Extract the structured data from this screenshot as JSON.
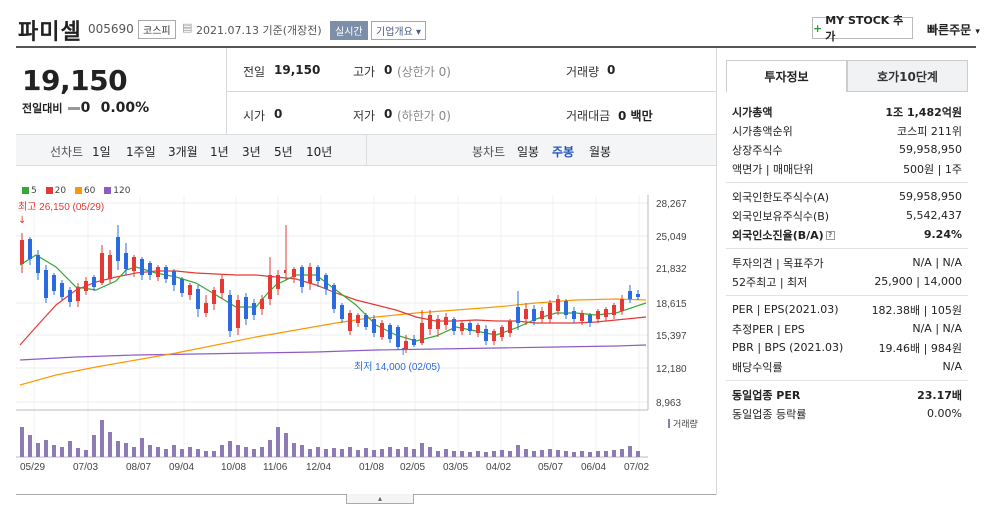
{
  "header": {
    "title": "파미셀",
    "code": "005690",
    "market_tag": "코스피",
    "date": "2021.07.13 기준(개장전)",
    "live_tag": "실시간",
    "company_btn": "기업개요",
    "mystock_btn": "MY STOCK 추가",
    "quick_order": "빠른주문"
  },
  "quote": {
    "price": "19,150",
    "change_label": "전일대비",
    "change_value": "0",
    "change_pct": "0.00%",
    "prev_label": "전일",
    "prev_value": "19,150",
    "high_label": "고가",
    "high_value": "0",
    "high_sub": "(상한가 0)",
    "volume_label": "거래량",
    "volume_value": "0",
    "open_label": "시가",
    "open_value": "0",
    "low_label": "저가",
    "low_value": "0",
    "low_sub": "(하한가 0)",
    "amount_label": "거래대금",
    "amount_value": "0 백만"
  },
  "periods": {
    "line_label": "선차트",
    "line_items": [
      "1일",
      "1주일",
      "3개월",
      "1년",
      "3년",
      "5년",
      "10년"
    ],
    "candle_label": "봉차트",
    "candle_items": [
      "일봉",
      "주봉",
      "월봉"
    ],
    "active_candle": "주봉"
  },
  "chart_data": {
    "type": "candlestick",
    "legend": [
      {
        "name": "5",
        "color": "#33aa33"
      },
      {
        "name": "20",
        "color": "#e53935"
      },
      {
        "name": "60",
        "color": "#ff9800"
      },
      {
        "name": "120",
        "color": "#8e5bc6"
      }
    ],
    "y_ticks": [
      "28,267",
      "25,049",
      "21,832",
      "18,615",
      "15,397",
      "12,180",
      "8,963"
    ],
    "x_ticks": [
      "05/29",
      "07/03",
      "08/07",
      "09/04",
      "10/08",
      "11/06",
      "12/04",
      "01/08",
      "02/05",
      "03/05",
      "04/02",
      "05/07",
      "06/04",
      "07/02"
    ],
    "high_note": "최고 26,150 (05/29)",
    "low_note": "최저 14,000 (02/05)",
    "volume_label": "거래량"
  },
  "info": {
    "tab_active": "투자정보",
    "tab_inactive": "호가10단계",
    "rows1": [
      {
        "label": "시가총액",
        "value": "1조 1,482억원",
        "bold": true
      },
      {
        "label": "시가총액순위",
        "value": "코스피  211위"
      },
      {
        "label": "상장주식수",
        "value": "59,958,950"
      },
      {
        "label": "액면가 | 매매단위",
        "value": "500원 | 1주"
      }
    ],
    "rows2": [
      {
        "label": "외국인한도주식수(A)",
        "value": "59,958,950"
      },
      {
        "label": "외국인보유주식수(B)",
        "value": "5,542,437"
      },
      {
        "label": "외국인소진율(B/A)",
        "value": "9.24%",
        "bold": true
      }
    ],
    "rows3": [
      {
        "label": "투자의견 | 목표주가",
        "value": "N/A | N/A"
      },
      {
        "label": "52주최고 | 최저",
        "value": "25,900 | 14,000"
      }
    ],
    "rows4": [
      {
        "label": "PER | EPS(2021.03)",
        "value": "182.38배 | 105원"
      },
      {
        "label": "추정PER | EPS",
        "value": "N/A | N/A"
      },
      {
        "label": "PBR | BPS (2021.03)",
        "value": "19.46배 | 984원"
      },
      {
        "label": "배당수익률",
        "value": "N/A"
      }
    ],
    "rows5": [
      {
        "label": "동일업종 PER",
        "value": "23.17배",
        "bold": true
      },
      {
        "label": "동일업종 등락률",
        "value": "0.00%"
      }
    ]
  }
}
